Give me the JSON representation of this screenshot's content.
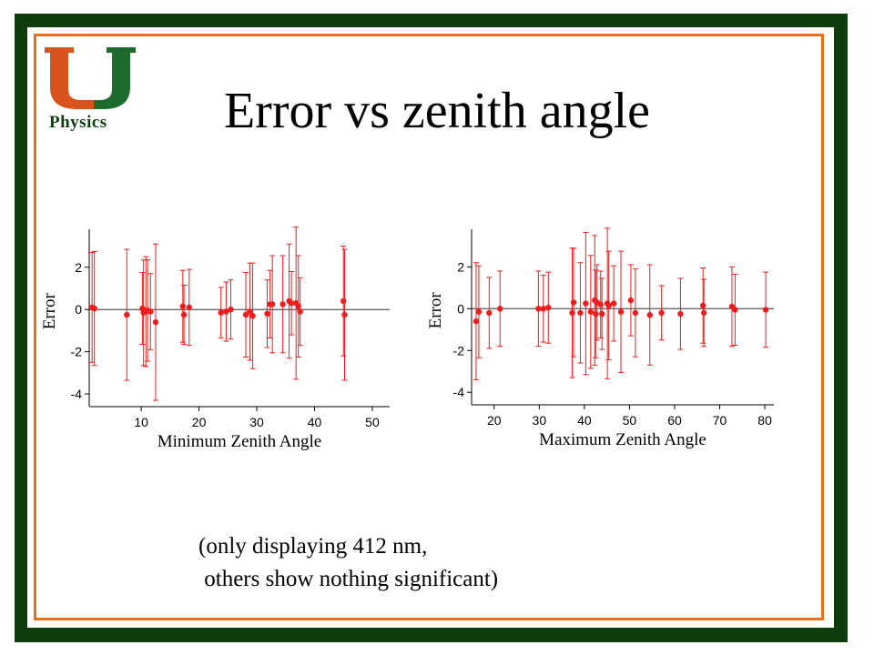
{
  "slide": {
    "title": "Error vs zenith angle",
    "logo_label": "Physics",
    "caption_line1": "(only displaying 412 nm,",
    "caption_line2": " others show nothing significant)",
    "colors": {
      "border_green": "#0d3d0d",
      "frame_orange": "#e86f1a",
      "logo_orange": "#d9531e",
      "logo_green": "#1e6b2e",
      "data_red": "#ee1c1c"
    }
  },
  "chart_data": [
    {
      "type": "scatter",
      "xlabel": "Minimum Zenith Angle",
      "ylabel": "Error",
      "xlim": [
        1,
        53
      ],
      "ylim": [
        -4.6,
        3.8
      ],
      "xticks": [
        10,
        20,
        30,
        40,
        50
      ],
      "yticks": [
        2,
        0,
        -2,
        -4
      ],
      "points": [
        {
          "x": 1.5,
          "y": 0.1,
          "e": 2.6
        },
        {
          "x": 1.9,
          "y": 0.05,
          "e": 2.7
        },
        {
          "x": 7.5,
          "y": -0.25,
          "e": 3.1
        },
        {
          "x": 10.2,
          "y": 0.05,
          "e": 1.7
        },
        {
          "x": 10.4,
          "y": -0.15,
          "e": 2.5
        },
        {
          "x": 10.8,
          "y": -0.1,
          "e": 2.6
        },
        {
          "x": 11.1,
          "y": -0.05,
          "e": 2.4
        },
        {
          "x": 11.6,
          "y": -0.1,
          "e": 1.8
        },
        {
          "x": 12.5,
          "y": -0.6,
          "e": 3.7
        },
        {
          "x": 17.2,
          "y": 0.15,
          "e": 1.7
        },
        {
          "x": 17.4,
          "y": -0.25,
          "e": 1.4
        },
        {
          "x": 18.3,
          "y": 0.1,
          "e": 1.8
        },
        {
          "x": 23.8,
          "y": -0.15,
          "e": 1.2
        },
        {
          "x": 24.7,
          "y": -0.1,
          "e": 1.4
        },
        {
          "x": 25.5,
          "y": 0.0,
          "e": 1.4
        },
        {
          "x": 28.1,
          "y": -0.25,
          "e": 2.0
        },
        {
          "x": 28.8,
          "y": -0.1,
          "e": 2.3
        },
        {
          "x": 29.3,
          "y": -0.3,
          "e": 2.5
        },
        {
          "x": 31.8,
          "y": -0.2,
          "e": 1.6
        },
        {
          "x": 32.3,
          "y": 0.25,
          "e": 1.6
        },
        {
          "x": 32.7,
          "y": 0.25,
          "e": 2.3
        },
        {
          "x": 34.5,
          "y": 0.25,
          "e": 2.3
        },
        {
          "x": 35.6,
          "y": 0.4,
          "e": 2.7
        },
        {
          "x": 36.0,
          "y": 0.3,
          "e": 1.5
        },
        {
          "x": 36.8,
          "y": 0.3,
          "e": 3.6
        },
        {
          "x": 37.2,
          "y": 0.15,
          "e": 2.4
        },
        {
          "x": 37.5,
          "y": -0.1,
          "e": 1.6
        },
        {
          "x": 45.0,
          "y": 0.4,
          "e": 2.6
        },
        {
          "x": 45.2,
          "y": -0.25,
          "e": 3.1
        }
      ]
    },
    {
      "type": "scatter",
      "xlabel": "Maximum Zenith Angle",
      "ylabel": "Error",
      "xlim": [
        15,
        82
      ],
      "ylim": [
        -4.6,
        3.8
      ],
      "xticks": [
        20,
        30,
        40,
        50,
        60,
        70,
        80
      ],
      "yticks": [
        2,
        0,
        -2,
        -4
      ],
      "points": [
        {
          "x": 16.0,
          "y": -0.6,
          "e": 2.8
        },
        {
          "x": 16.6,
          "y": -0.15,
          "e": 2.2
        },
        {
          "x": 18.9,
          "y": -0.2,
          "e": 1.7
        },
        {
          "x": 21.3,
          "y": 0.0,
          "e": 1.8
        },
        {
          "x": 29.8,
          "y": 0.0,
          "e": 1.8
        },
        {
          "x": 30.9,
          "y": 0.0,
          "e": 1.6
        },
        {
          "x": 32.0,
          "y": 0.05,
          "e": 1.7
        },
        {
          "x": 37.3,
          "y": -0.2,
          "e": 3.1
        },
        {
          "x": 37.6,
          "y": 0.3,
          "e": 2.6
        },
        {
          "x": 39.1,
          "y": -0.2,
          "e": 2.4
        },
        {
          "x": 40.3,
          "y": 0.25,
          "e": 3.4
        },
        {
          "x": 41.4,
          "y": -0.15,
          "e": 2.7
        },
        {
          "x": 42.3,
          "y": 0.4,
          "e": 3.1
        },
        {
          "x": 42.5,
          "y": -0.25,
          "e": 2.1
        },
        {
          "x": 42.8,
          "y": 0.3,
          "e": 1.8
        },
        {
          "x": 43.6,
          "y": 0.2,
          "e": 1.6
        },
        {
          "x": 43.9,
          "y": -0.25,
          "e": 1.7
        },
        {
          "x": 45.1,
          "y": 0.25,
          "e": 3.6
        },
        {
          "x": 45.4,
          "y": 0.15,
          "e": 2.6
        },
        {
          "x": 46.5,
          "y": 0.25,
          "e": 1.8
        },
        {
          "x": 48.1,
          "y": -0.15,
          "e": 2.9
        },
        {
          "x": 50.3,
          "y": 0.4,
          "e": 1.7
        },
        {
          "x": 51.3,
          "y": -0.2,
          "e": 2.1
        },
        {
          "x": 54.5,
          "y": -0.3,
          "e": 2.4
        },
        {
          "x": 57.1,
          "y": -0.2,
          "e": 1.3
        },
        {
          "x": 61.3,
          "y": -0.25,
          "e": 1.7
        },
        {
          "x": 66.3,
          "y": 0.15,
          "e": 1.8
        },
        {
          "x": 66.5,
          "y": -0.2,
          "e": 1.6
        },
        {
          "x": 72.7,
          "y": 0.1,
          "e": 1.9
        },
        {
          "x": 73.4,
          "y": -0.05,
          "e": 1.7
        },
        {
          "x": 80.2,
          "y": -0.05,
          "e": 1.8
        }
      ]
    }
  ]
}
